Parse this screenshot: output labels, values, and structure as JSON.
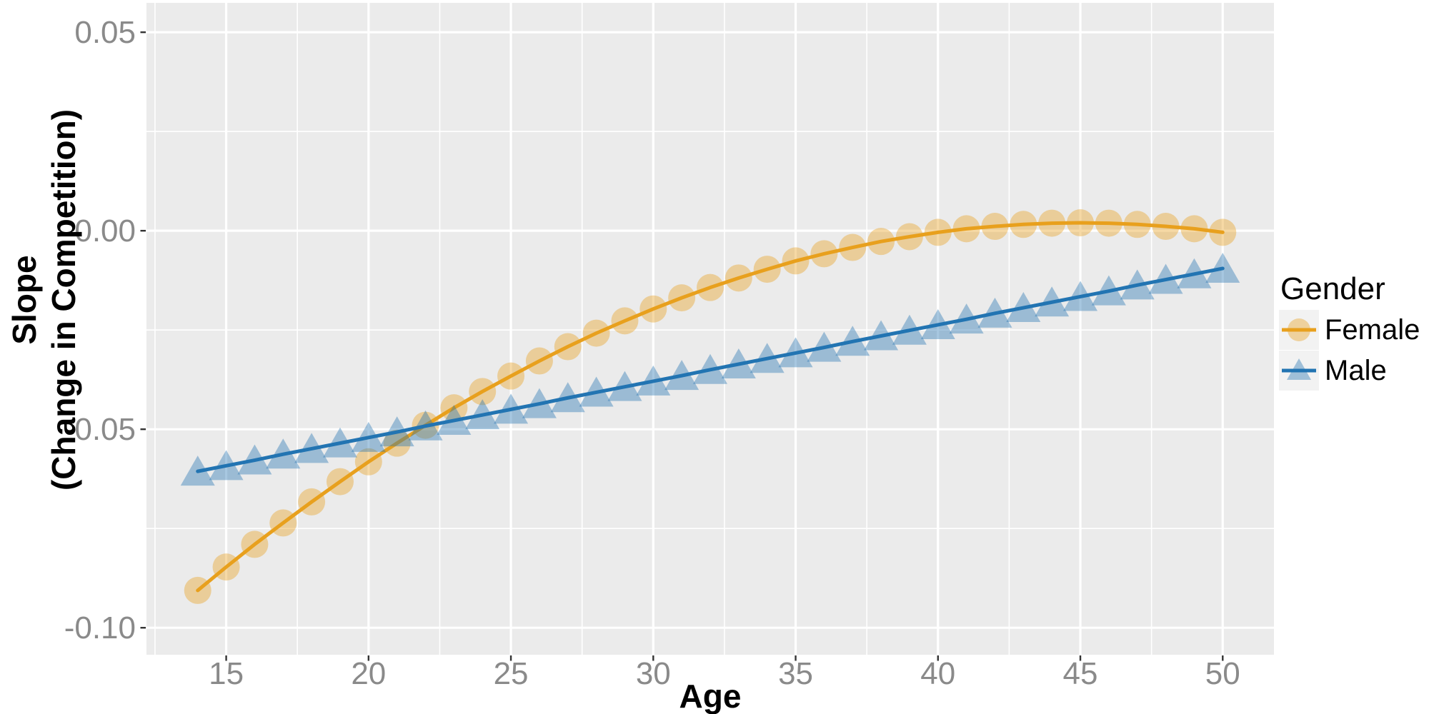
{
  "figure": {
    "background": "#FFFFFF",
    "panel_background": "#EBEBEB",
    "grid_color": "#FFFFFF",
    "tick_mark_color": "#333333",
    "tick_label_color": "#8A8A8A",
    "axis_title_color": "#000000"
  },
  "axes": {
    "x_title": "Age",
    "y_title_line1": "Slope",
    "y_title_line2": "(Change in Competition)"
  },
  "legend": {
    "title": "Gender",
    "key_background": "#F2F2F2",
    "items": [
      {
        "label": "Female",
        "series_index": 0
      },
      {
        "label": "Male",
        "series_index": 1
      }
    ]
  },
  "chart_data": {
    "type": "line",
    "title": "",
    "xlabel": "Age",
    "ylabel": "Slope (Change in Competition)",
    "xlim": [
      12.2,
      51.8
    ],
    "ylim": [
      -0.1068,
      0.0574
    ],
    "grid": true,
    "legend_position": "right",
    "x": [
      14,
      15,
      16,
      17,
      18,
      19,
      20,
      21,
      22,
      23,
      24,
      25,
      26,
      27,
      28,
      29,
      30,
      31,
      32,
      33,
      34,
      35,
      36,
      37,
      38,
      39,
      40,
      41,
      42,
      43,
      44,
      45,
      46,
      47,
      48,
      49,
      50
    ],
    "series": [
      {
        "name": "Female",
        "marker": "circle",
        "color": "#E8A01D",
        "marker_opacity": 0.4,
        "values": [
          -0.0906,
          -0.0847,
          -0.079,
          -0.0736,
          -0.0683,
          -0.0632,
          -0.0582,
          -0.0535,
          -0.049,
          -0.0446,
          -0.0405,
          -0.0366,
          -0.0328,
          -0.0292,
          -0.0258,
          -0.0227,
          -0.0197,
          -0.0169,
          -0.0143,
          -0.0119,
          -0.0097,
          -0.0076,
          -0.0058,
          -0.0042,
          -0.0027,
          -0.0015,
          -0.0004,
          0.0005,
          0.0011,
          0.0016,
          0.0019,
          0.002,
          0.0019,
          0.0016,
          0.0011,
          0.0005,
          -0.0004
        ]
      },
      {
        "name": "Male",
        "marker": "triangle",
        "color": "#2274B2",
        "marker_opacity": 0.4,
        "values": [
          -0.0606,
          -0.0592,
          -0.0578,
          -0.0563,
          -0.0549,
          -0.0535,
          -0.0521,
          -0.0507,
          -0.0492,
          -0.0478,
          -0.0464,
          -0.045,
          -0.0436,
          -0.0421,
          -0.0407,
          -0.0393,
          -0.0379,
          -0.0365,
          -0.035,
          -0.0336,
          -0.0322,
          -0.0308,
          -0.0294,
          -0.0279,
          -0.0265,
          -0.0251,
          -0.0237,
          -0.0223,
          -0.0208,
          -0.0194,
          -0.018,
          -0.0166,
          -0.0152,
          -0.0137,
          -0.0123,
          -0.0109,
          -0.0095
        ]
      }
    ],
    "x_ticks": {
      "values": [
        15,
        20,
        25,
        30,
        35,
        40,
        45,
        50
      ],
      "labels": [
        "15",
        "20",
        "25",
        "30",
        "35",
        "40",
        "45",
        "50"
      ]
    },
    "y_ticks": {
      "values": [
        0.05,
        0.0,
        -0.05,
        -0.1
      ],
      "labels": [
        "0.05",
        "0.00",
        "-0.05",
        "-0.10"
      ]
    },
    "x_minor_gridlines": [
      12.5,
      17.5,
      22.5,
      27.5,
      32.5,
      37.5,
      42.5,
      47.5
    ],
    "y_minor_gridlines": [
      0.025,
      -0.025,
      -0.075
    ]
  }
}
